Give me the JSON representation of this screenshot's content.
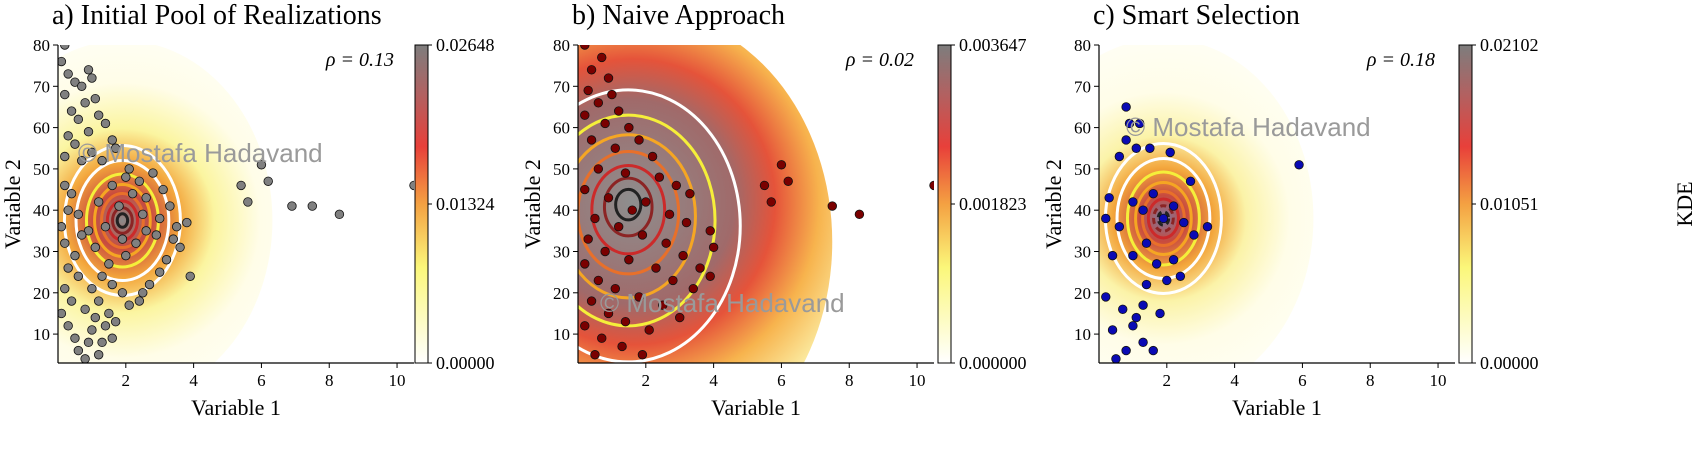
{
  "watermark": "© Mostafa Hadavand",
  "colorbar_label": "KDE",
  "chart_data": [
    {
      "type": "scatter",
      "title": "a) Initial Pool of Realizations",
      "xlabel": "Variable 1",
      "ylabel": "Variable 2",
      "xlim": [
        0,
        10.5
      ],
      "ylim": [
        3,
        80
      ],
      "xticks": [
        "2",
        "4",
        "6",
        "8",
        "10"
      ],
      "yticks": [
        "10",
        "20",
        "30",
        "40",
        "50",
        "60",
        "70",
        "80"
      ],
      "annotation": "ρ = 0.13",
      "colorbar_ticks": [
        "0.02648",
        "0.01324",
        "0.00000"
      ],
      "marker_color": "#808080",
      "kde_center": [
        1.9,
        37.5
      ],
      "points": [
        [
          0.2,
          80
        ],
        [
          0.1,
          76
        ],
        [
          0.3,
          73
        ],
        [
          0.5,
          71
        ],
        [
          0.2,
          68
        ],
        [
          0.7,
          70
        ],
        [
          0.9,
          74
        ],
        [
          1.0,
          72
        ],
        [
          0.4,
          64
        ],
        [
          0.6,
          62
        ],
        [
          0.8,
          66
        ],
        [
          1.1,
          67
        ],
        [
          1.2,
          63
        ],
        [
          0.3,
          58
        ],
        [
          0.5,
          56
        ],
        [
          0.9,
          59
        ],
        [
          1.4,
          61
        ],
        [
          1.6,
          57
        ],
        [
          0.2,
          53
        ],
        [
          0.7,
          52
        ],
        [
          1.0,
          54
        ],
        [
          1.3,
          52
        ],
        [
          1.7,
          55
        ],
        [
          2.1,
          50
        ],
        [
          2.4,
          47
        ],
        [
          2.8,
          49
        ],
        [
          3.1,
          45
        ],
        [
          2.6,
          43
        ],
        [
          3.3,
          41
        ],
        [
          3.0,
          38
        ],
        [
          2.9,
          34
        ],
        [
          3.5,
          36
        ],
        [
          3.8,
          37
        ],
        [
          3.4,
          33
        ],
        [
          3.6,
          31
        ],
        [
          3.2,
          28
        ],
        [
          3.9,
          24
        ],
        [
          3.0,
          25
        ],
        [
          2.7,
          22
        ],
        [
          2.5,
          20
        ],
        [
          2.4,
          18
        ],
        [
          2.1,
          17
        ],
        [
          1.9,
          20
        ],
        [
          1.6,
          22
        ],
        [
          0.2,
          46
        ],
        [
          0.4,
          44
        ],
        [
          0.3,
          40
        ],
        [
          0.1,
          36
        ],
        [
          0.2,
          32
        ],
        [
          0.5,
          29
        ],
        [
          0.3,
          26
        ],
        [
          0.6,
          24
        ],
        [
          0.2,
          21
        ],
        [
          0.4,
          18
        ],
        [
          0.1,
          15
        ],
        [
          0.3,
          12
        ],
        [
          0.5,
          9
        ],
        [
          0.6,
          6
        ],
        [
          0.8,
          4
        ],
        [
          0.9,
          8
        ],
        [
          1.0,
          11
        ],
        [
          1.1,
          14
        ],
        [
          1.2,
          5
        ],
        [
          1.3,
          8
        ],
        [
          1.4,
          12
        ],
        [
          1.5,
          15
        ],
        [
          1.6,
          9
        ],
        [
          1.7,
          13
        ],
        [
          1.2,
          18
        ],
        [
          1.0,
          21
        ],
        [
          0.8,
          16
        ],
        [
          1.5,
          27
        ],
        [
          1.1,
          31
        ],
        [
          0.9,
          35
        ],
        [
          1.2,
          42
        ],
        [
          1.6,
          46
        ],
        [
          2.2,
          44
        ],
        [
          1.4,
          36
        ],
        [
          2.3,
          32
        ],
        [
          2.0,
          29
        ],
        [
          1.3,
          24
        ],
        [
          0.7,
          34
        ],
        [
          0.6,
          39
        ],
        [
          1.8,
          41
        ],
        [
          2.5,
          39
        ],
        [
          2.6,
          35
        ],
        [
          1.9,
          33
        ],
        [
          2.0,
          48
        ],
        [
          5.4,
          46
        ],
        [
          5.6,
          42
        ],
        [
          6.0,
          51
        ],
        [
          6.2,
          47
        ],
        [
          6.9,
          41
        ],
        [
          7.5,
          41
        ],
        [
          8.3,
          39
        ],
        [
          10.5,
          46
        ]
      ]
    },
    {
      "type": "scatter",
      "title": "b) Naive Approach",
      "xlabel": "Variable 1",
      "ylabel": "Variable 2",
      "xlim": [
        0,
        10.5
      ],
      "ylim": [
        3,
        80
      ],
      "xticks": [
        "2",
        "4",
        "6",
        "8",
        "10"
      ],
      "yticks": [
        "10",
        "20",
        "30",
        "40",
        "50",
        "60",
        "70",
        "80"
      ],
      "annotation": "ρ = 0.02",
      "colorbar_ticks": [
        "0.003647",
        "0.001823",
        "0.000000"
      ],
      "marker_color": "#7a0000",
      "kde_center": [
        1.6,
        42
      ],
      "points": [
        [
          0.2,
          80
        ],
        [
          0.4,
          74
        ],
        [
          0.7,
          77
        ],
        [
          0.9,
          72
        ],
        [
          0.3,
          69
        ],
        [
          0.6,
          66
        ],
        [
          1.0,
          68
        ],
        [
          0.2,
          63
        ],
        [
          0.8,
          61
        ],
        [
          1.2,
          64
        ],
        [
          1.5,
          60
        ],
        [
          0.4,
          57
        ],
        [
          1.1,
          55
        ],
        [
          1.8,
          57
        ],
        [
          2.2,
          53
        ],
        [
          0.6,
          50
        ],
        [
          1.4,
          49
        ],
        [
          2.4,
          48
        ],
        [
          2.9,
          46
        ],
        [
          3.3,
          44
        ],
        [
          0.2,
          45
        ],
        [
          0.9,
          43
        ],
        [
          1.6,
          40
        ],
        [
          2.0,
          42
        ],
        [
          2.7,
          39
        ],
        [
          3.2,
          37
        ],
        [
          3.9,
          35
        ],
        [
          4.0,
          31
        ],
        [
          0.5,
          38
        ],
        [
          1.2,
          36
        ],
        [
          1.9,
          34
        ],
        [
          2.6,
          32
        ],
        [
          3.1,
          29
        ],
        [
          3.6,
          26
        ],
        [
          0.3,
          33
        ],
        [
          0.8,
          30
        ],
        [
          1.5,
          28
        ],
        [
          2.3,
          26
        ],
        [
          2.8,
          23
        ],
        [
          3.4,
          21
        ],
        [
          3.9,
          24
        ],
        [
          0.2,
          27
        ],
        [
          0.6,
          23
        ],
        [
          1.1,
          21
        ],
        [
          1.8,
          19
        ],
        [
          2.5,
          17
        ],
        [
          3.0,
          14
        ],
        [
          0.4,
          18
        ],
        [
          0.9,
          15
        ],
        [
          1.4,
          13
        ],
        [
          2.1,
          11
        ],
        [
          0.2,
          12
        ],
        [
          0.7,
          9
        ],
        [
          1.3,
          7
        ],
        [
          1.9,
          5
        ],
        [
          0.5,
          5
        ],
        [
          5.5,
          46
        ],
        [
          5.7,
          42
        ],
        [
          6.0,
          51
        ],
        [
          6.2,
          47
        ],
        [
          7.5,
          41
        ],
        [
          8.3,
          39
        ],
        [
          10.5,
          46
        ]
      ]
    },
    {
      "type": "scatter",
      "title": "c) Smart Selection",
      "xlabel": "Variable 1",
      "ylabel": "Variable 2",
      "xlim": [
        0,
        10.5
      ],
      "ylim": [
        3,
        80
      ],
      "xticks": [
        "2",
        "4",
        "6",
        "8",
        "10"
      ],
      "yticks": [
        "10",
        "20",
        "30",
        "40",
        "50",
        "60",
        "70",
        "80"
      ],
      "annotation": "ρ = 0.18",
      "colorbar_ticks": [
        "0.02102",
        "0.01051",
        "0.00000"
      ],
      "marker_color": "#0a0ab4",
      "kde_center": [
        1.9,
        38
      ],
      "points": [
        [
          0.8,
          65
        ],
        [
          0.9,
          61
        ],
        [
          1.2,
          61
        ],
        [
          0.8,
          57
        ],
        [
          1.1,
          55
        ],
        [
          0.6,
          53
        ],
        [
          1.5,
          55
        ],
        [
          2.1,
          54
        ],
        [
          5.9,
          51
        ],
        [
          0.3,
          43
        ],
        [
          0.2,
          38
        ],
        [
          0.6,
          36
        ],
        [
          1.0,
          42
        ],
        [
          1.3,
          40
        ],
        [
          1.6,
          44
        ],
        [
          1.9,
          38
        ],
        [
          2.2,
          41
        ],
        [
          2.5,
          37
        ],
        [
          2.8,
          34
        ],
        [
          3.2,
          36
        ],
        [
          2.7,
          47
        ],
        [
          1.4,
          32
        ],
        [
          1.0,
          29
        ],
        [
          1.7,
          27
        ],
        [
          2.2,
          28
        ],
        [
          0.4,
          29
        ],
        [
          0.2,
          19
        ],
        [
          1.4,
          22
        ],
        [
          2.0,
          23
        ],
        [
          2.4,
          24
        ],
        [
          1.3,
          17
        ],
        [
          1.8,
          15
        ],
        [
          0.7,
          16
        ],
        [
          1.0,
          12
        ],
        [
          0.4,
          11
        ],
        [
          1.3,
          8
        ],
        [
          0.8,
          6
        ],
        [
          1.6,
          6
        ],
        [
          0.5,
          4
        ],
        [
          1.1,
          14
        ]
      ]
    }
  ]
}
